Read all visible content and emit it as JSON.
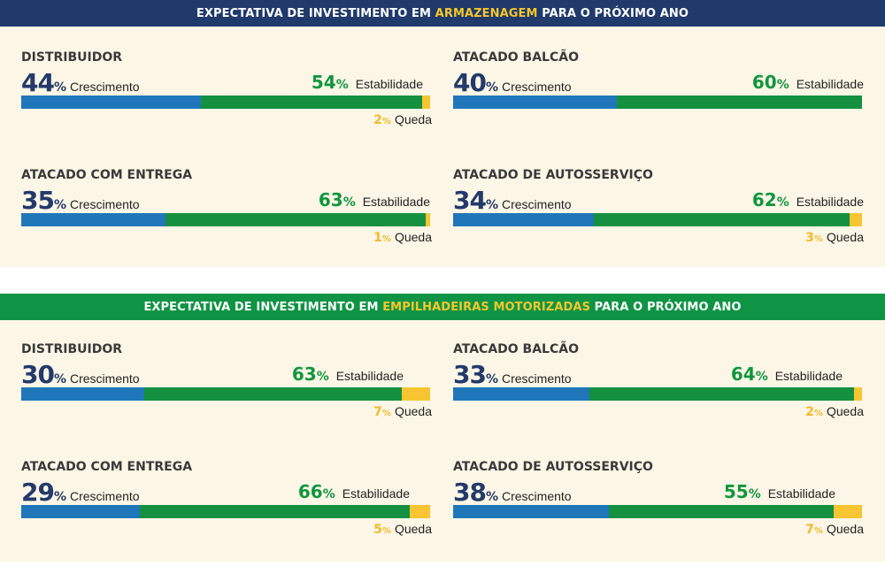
{
  "colors": {
    "crescimento": "#1f77b9",
    "estabilidade": "#149040",
    "queda": "#f7c531",
    "header1": "#1f3a6b",
    "header2": "#0f9445",
    "background": "#fcf6e6"
  },
  "labels": {
    "crescimento": "Crescimento",
    "estabilidade": "Estabilidade",
    "queda": "Queda",
    "pct": "%"
  },
  "sections": [
    {
      "title_pre": "EXPECTATIVA DE INVESTIMENTO EM ",
      "title_highlight": "ARMAZENAGEM",
      "title_post": " PARA O PRÓXIMO ANO",
      "panels": [
        {
          "name": "DISTRIBUIDOR",
          "crescimento": "44",
          "estabilidade": "54",
          "queda": "2"
        },
        {
          "name": "ATACADO BALCÃO",
          "crescimento": "40",
          "estabilidade": "60",
          "queda": ""
        },
        {
          "name": "ATACADO COM ENTREGA",
          "crescimento": "35",
          "estabilidade": "63",
          "queda": "1"
        },
        {
          "name": "ATACADO DE AUTOSSERVIÇO",
          "crescimento": "34",
          "estabilidade": "62",
          "queda": "3"
        }
      ]
    },
    {
      "title_pre": "EXPECTATIVA DE INVESTIMENTO EM ",
      "title_highlight": "EMPILHADEIRAS MOTORIZADAS",
      "title_post": " PARA O PRÓXIMO ANO",
      "panels": [
        {
          "name": "DISTRIBUIDOR",
          "crescimento": "30",
          "estabilidade": "63",
          "queda": "7"
        },
        {
          "name": "ATACADO BALCÃO",
          "crescimento": "33",
          "estabilidade": "64",
          "queda": "2"
        },
        {
          "name": "ATACADO COM ENTREGA",
          "crescimento": "29",
          "estabilidade": "66",
          "queda": "5"
        },
        {
          "name": "ATACADO DE AUTOSSERVIÇO",
          "crescimento": "38",
          "estabilidade": "55",
          "queda": "7"
        }
      ]
    }
  ],
  "chart_data": {
    "type": "bar",
    "stacked": true,
    "orientation": "horizontal",
    "categories": [
      "DISTRIBUIDOR",
      "ATACADO BALCÃO",
      "ATACADO COM ENTREGA",
      "ATACADO DE AUTOSSERVIÇO"
    ],
    "groups": [
      {
        "title": "EXPECTATIVA DE INVESTIMENTO EM ARMAZENAGEM PARA O PRÓXIMO ANO",
        "series": [
          {
            "name": "Crescimento",
            "values": [
              44,
              40,
              35,
              34
            ]
          },
          {
            "name": "Estabilidade",
            "values": [
              54,
              60,
              63,
              62
            ]
          },
          {
            "name": "Queda",
            "values": [
              2,
              0,
              1,
              3
            ]
          }
        ]
      },
      {
        "title": "EXPECTATIVA DE INVESTIMENTO EM EMPILHADEIRAS MOTORIZADAS PARA O PRÓXIMO ANO",
        "series": [
          {
            "name": "Crescimento",
            "values": [
              30,
              33,
              29,
              38
            ]
          },
          {
            "name": "Estabilidade",
            "values": [
              63,
              64,
              66,
              55
            ]
          },
          {
            "name": "Queda",
            "values": [
              7,
              2,
              5,
              7
            ]
          }
        ]
      }
    ],
    "unit": "%",
    "xlim": [
      0,
      100
    ]
  }
}
